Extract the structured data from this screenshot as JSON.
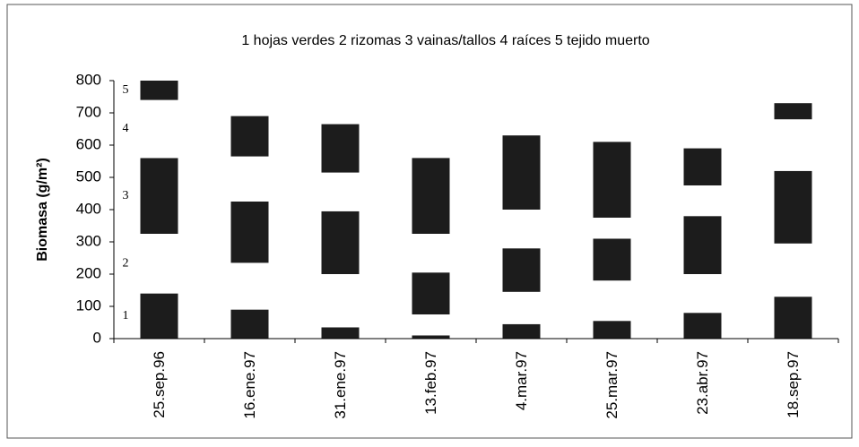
{
  "chart_data": {
    "type": "stacked_bar",
    "title": "1 hojas verdes 2 rizomas 3 vainas/tallos 4 raíces 5 tejido muerto",
    "y_label": "Biomasa (g/m²)",
    "categories": [
      "25.sep.96",
      "16.ene.97",
      "31.ene.97",
      "13.feb.97",
      "4.mar.97",
      "25.mar.97",
      "23.abr.97",
      "18.sep.97"
    ],
    "series": [
      {
        "name": "1",
        "color": "#1c1c1c",
        "values": [
          140,
          90,
          35,
          10,
          45,
          55,
          80,
          130
        ]
      },
      {
        "name": "2",
        "color": "#ffffff",
        "values": [
          185,
          145,
          165,
          65,
          100,
          125,
          120,
          165
        ]
      },
      {
        "name": "3",
        "color": "#1c1c1c",
        "values": [
          235,
          190,
          195,
          130,
          135,
          130,
          180,
          225
        ]
      },
      {
        "name": "4",
        "color": "#ffffff",
        "values": [
          180,
          140,
          120,
          120,
          120,
          65,
          95,
          160
        ]
      },
      {
        "name": "5",
        "color": "#1c1c1c",
        "values": [
          60,
          125,
          150,
          235,
          230,
          235,
          115,
          50
        ]
      }
    ],
    "ylim": [
      0,
      800
    ],
    "yticks": [
      0,
      100,
      200,
      300,
      400,
      500,
      600,
      700,
      800
    ]
  }
}
